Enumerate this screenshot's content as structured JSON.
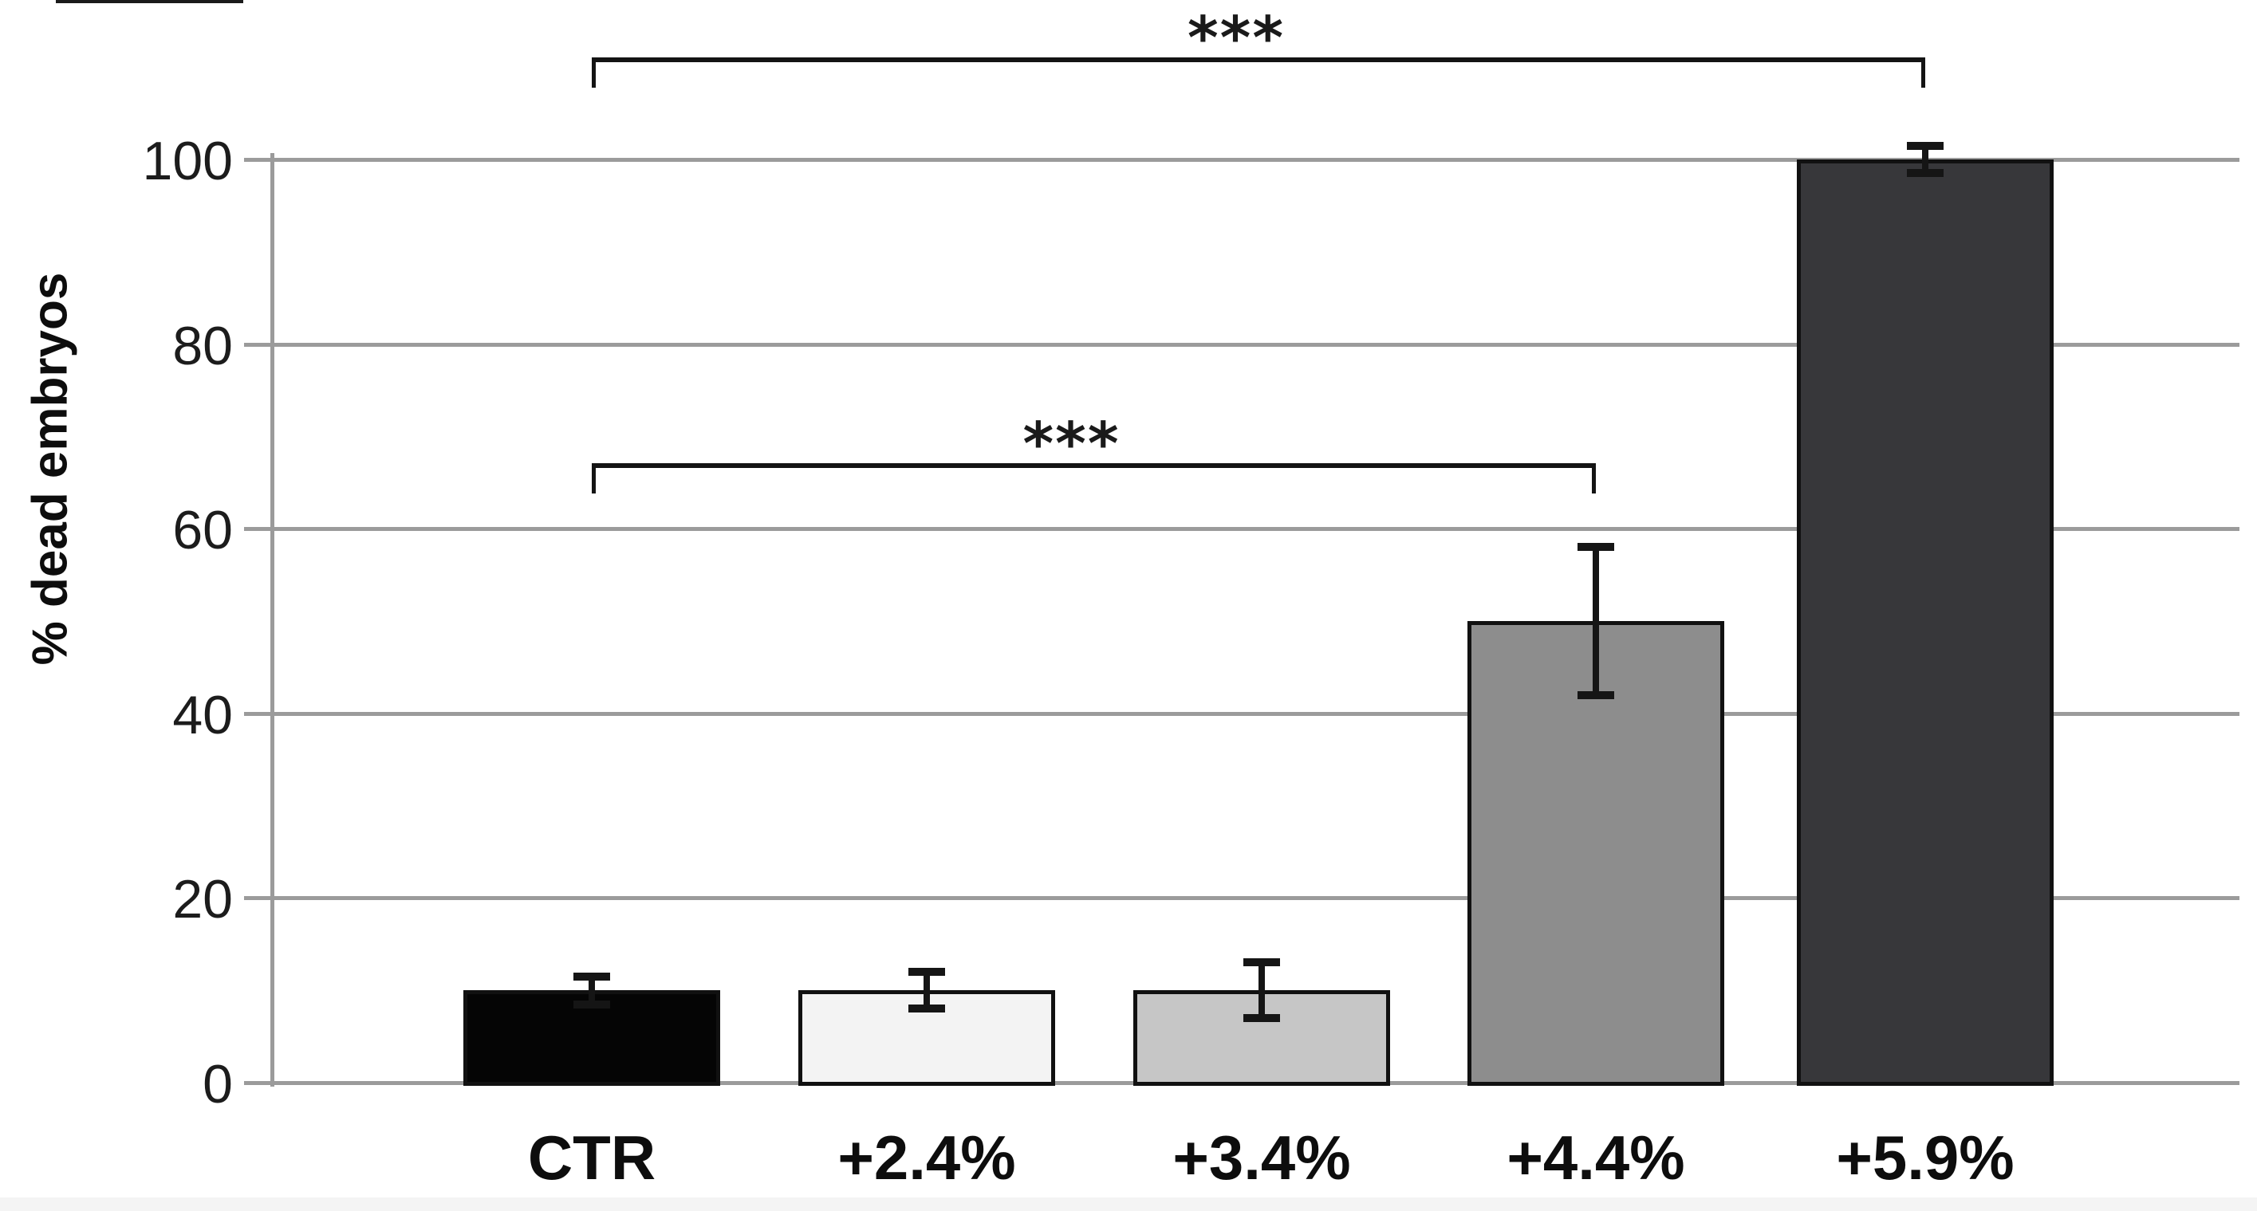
{
  "chart_data": {
    "type": "bar",
    "categories": [
      "CTR",
      "+2.4%",
      "+3.4%",
      "+4.4%",
      "+5.9%"
    ],
    "values": [
      10,
      10,
      10,
      50,
      100
    ],
    "error_plus": [
      1.5,
      2,
      3,
      8,
      1.5
    ],
    "error_minus": [
      1.5,
      2,
      3,
      8,
      1.5
    ],
    "title": "",
    "xlabel": "",
    "ylabel": "% dead embryos",
    "ylim": [
      0,
      100
    ],
    "yticks": [
      0,
      20,
      40,
      60,
      80,
      100
    ],
    "grid": true,
    "legend": null,
    "bar_fills": [
      "#050505",
      "#f3f3f3",
      "#c6c6c6",
      "#8d8d8d",
      "#37373a"
    ],
    "bar_border_color": "#111111",
    "gridline_color": "#9b9b9b",
    "error_bar_color": "#151515",
    "significance_brackets": [
      {
        "from": "CTR",
        "to": "+5.9%",
        "label": "***"
      },
      {
        "from": "CTR",
        "to": "+4.4%",
        "label": "***"
      }
    ]
  }
}
